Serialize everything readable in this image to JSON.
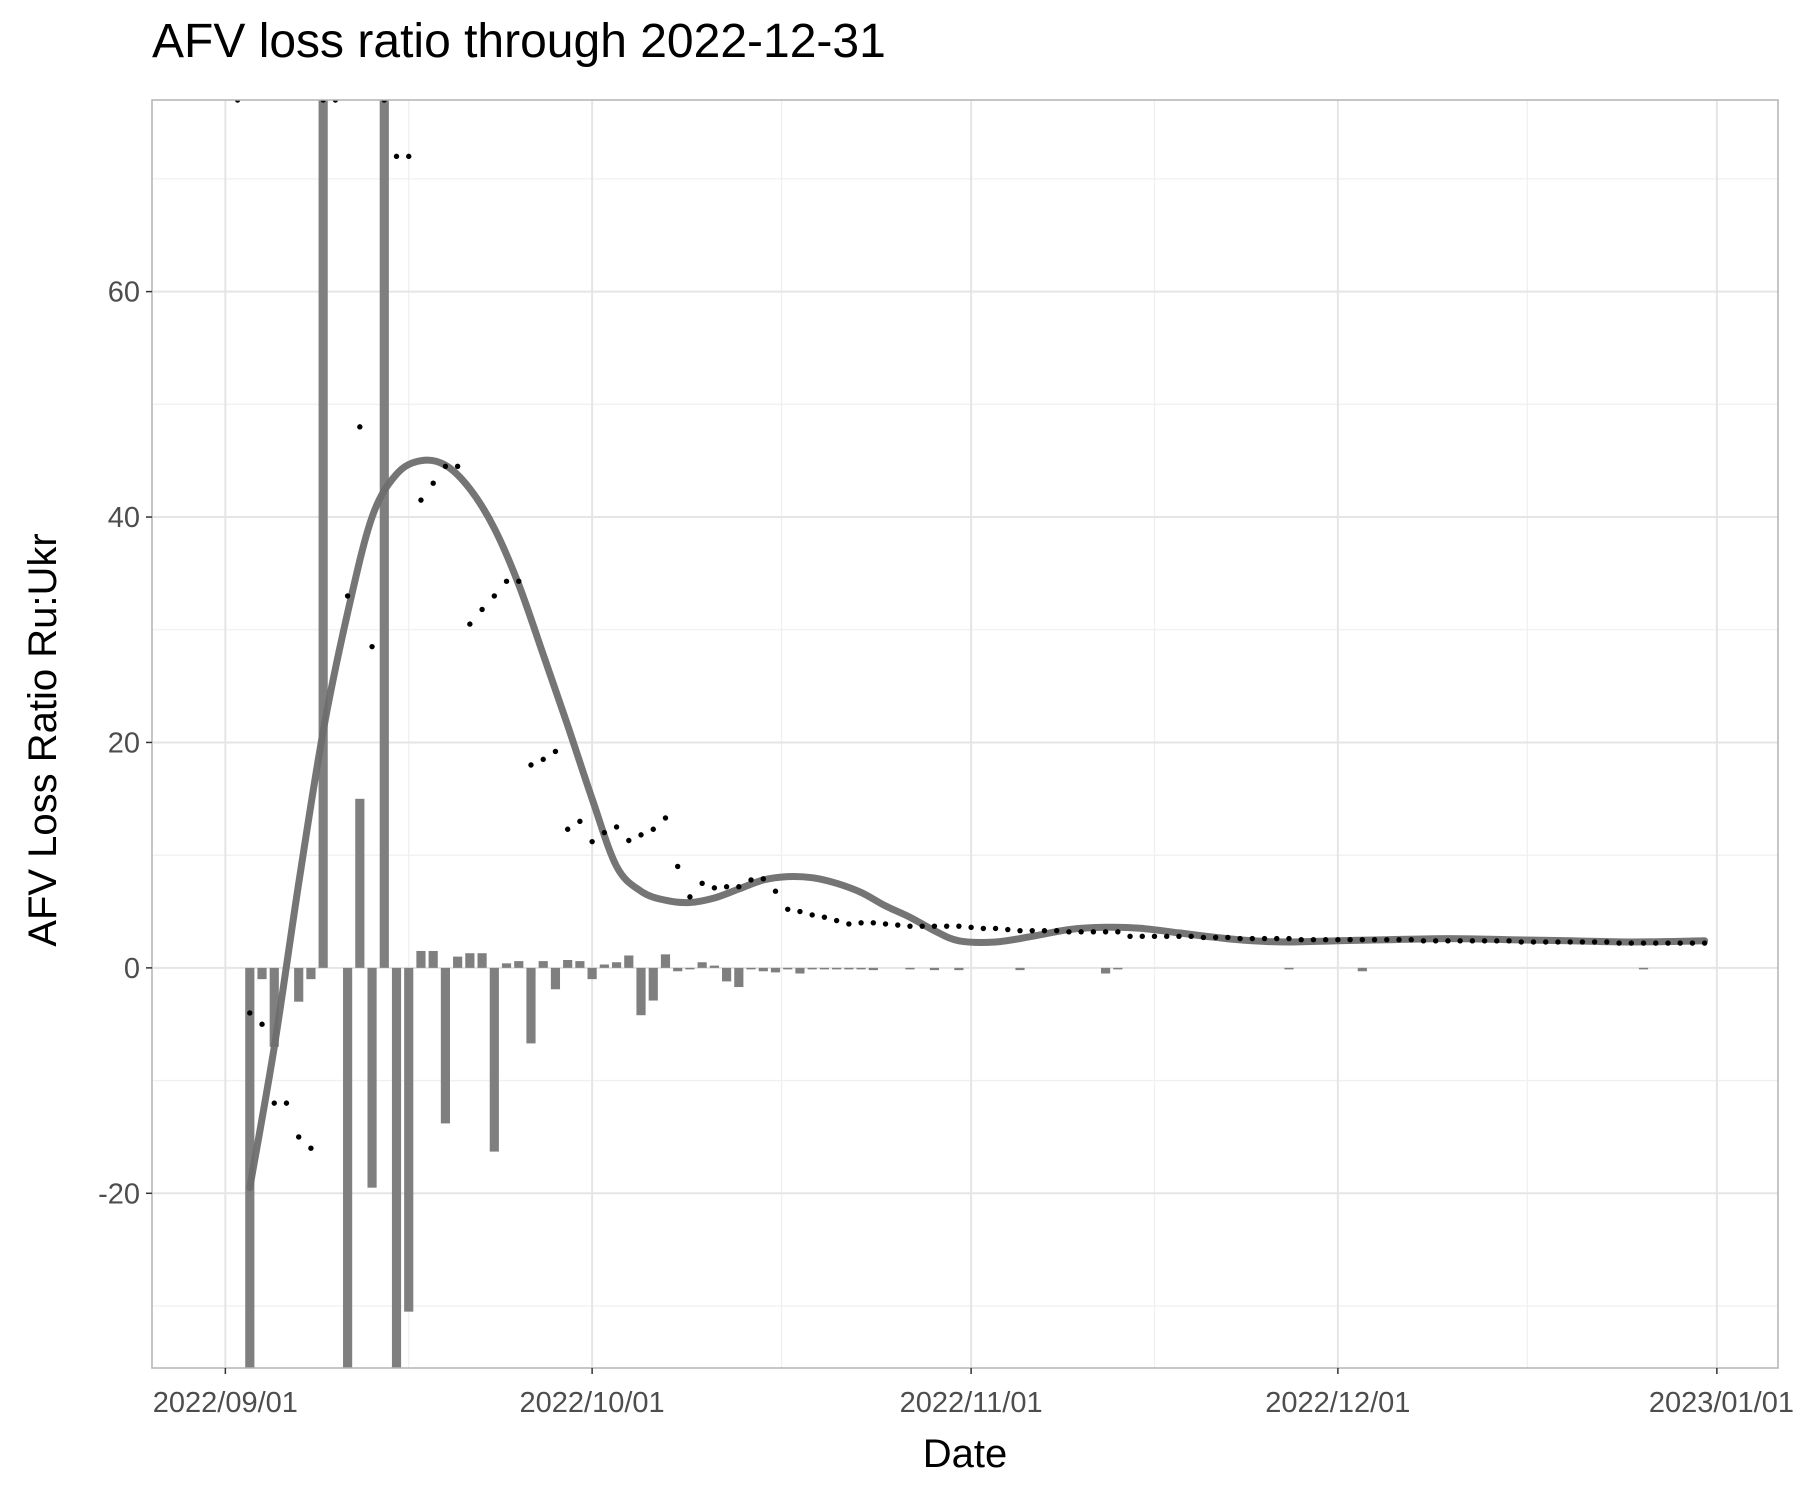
{
  "chart_data": {
    "type": "bar",
    "title": "AFV loss ratio through 2022-12-31",
    "xlabel": "Date",
    "ylabel": "AFV Loss Ratio Ru:Ukr",
    "xlim": [
      "2022-08-26",
      "2023-01-06"
    ],
    "ylim": [
      -35.5,
      77
    ],
    "x_ticks": [
      "2022-09-01",
      "2022-10-01",
      "2022-11-01",
      "2022-12-01",
      "2023-01-01"
    ],
    "x_tick_labels": [
      "2022/09/01",
      "2022/10/01",
      "2022/11/01",
      "2022/12/01",
      "2023/01/01"
    ],
    "y_ticks": [
      -20,
      0,
      20,
      40,
      60
    ],
    "y_tick_labels": [
      "-20",
      "0",
      "20",
      "40",
      "60"
    ],
    "grid": true,
    "legend": "none",
    "colors": {
      "bar": "#7f7f7f",
      "smooth_line": "#6e6e6e",
      "points": "#000000",
      "grid": "#e5e5e5",
      "panel_border": "#b3b3b3"
    },
    "series": [
      {
        "type": "bar",
        "x": [
          "2022-09-03",
          "2022-09-04",
          "2022-09-05",
          "2022-09-07",
          "2022-09-08",
          "2022-09-09",
          "2022-09-11",
          "2022-09-12",
          "2022-09-13",
          "2022-09-14",
          "2022-09-15",
          "2022-09-16",
          "2022-09-17",
          "2022-09-18",
          "2022-09-19",
          "2022-09-20",
          "2022-09-21",
          "2022-09-22",
          "2022-09-23",
          "2022-09-24",
          "2022-09-25",
          "2022-09-26",
          "2022-09-27",
          "2022-09-28",
          "2022-09-29",
          "2022-09-30",
          "2022-10-01",
          "2022-10-02",
          "2022-10-03",
          "2022-10-04",
          "2022-10-05",
          "2022-10-06",
          "2022-10-07",
          "2022-10-08",
          "2022-10-09",
          "2022-10-10",
          "2022-10-11",
          "2022-10-12",
          "2022-10-13",
          "2022-10-14",
          "2022-10-15",
          "2022-10-16",
          "2022-10-17",
          "2022-10-18",
          "2022-10-19",
          "2022-10-20",
          "2022-10-21",
          "2022-10-22",
          "2022-10-23",
          "2022-10-24",
          "2022-10-27",
          "2022-10-29",
          "2022-10-31",
          "2022-11-05",
          "2022-11-12",
          "2022-11-13",
          "2022-11-27",
          "2022-12-03",
          "2022-12-26"
        ],
        "values": [
          -36,
          -1,
          -7,
          -3,
          -1,
          77,
          -36,
          15,
          -19.5,
          77,
          -36,
          -30.5,
          1.5,
          1.5,
          -13.8,
          1,
          1.3,
          1.3,
          -16.3,
          0.4,
          0.6,
          -6.7,
          0.6,
          -1.9,
          0.7,
          0.6,
          -1,
          0.3,
          0.5,
          1.1,
          -4.2,
          -2.9,
          1.2,
          -0.3,
          -0.1,
          0.5,
          0.2,
          -1.2,
          -1.7,
          -0.1,
          -0.3,
          -0.4,
          -0.1,
          -0.5,
          -0.1,
          -0.1,
          -0.1,
          -0.1,
          -0.1,
          -0.2,
          -0.1,
          -0.2,
          -0.2,
          -0.2,
          -0.5,
          -0.1,
          -0.1,
          -0.3,
          -0.1
        ]
      },
      {
        "type": "scatter",
        "x": [
          "2022-09-02",
          "2022-09-03",
          "2022-09-04",
          "2022-09-05",
          "2022-09-06",
          "2022-09-07",
          "2022-09-08",
          "2022-09-09",
          "2022-09-10",
          "2022-09-11",
          "2022-09-12",
          "2022-09-13",
          "2022-09-14",
          "2022-09-15",
          "2022-09-16",
          "2022-09-17",
          "2022-09-18",
          "2022-09-19",
          "2022-09-20",
          "2022-09-21",
          "2022-09-22",
          "2022-09-23",
          "2022-09-24",
          "2022-09-25",
          "2022-09-26",
          "2022-09-27",
          "2022-09-28",
          "2022-09-29",
          "2022-09-30",
          "2022-10-01",
          "2022-10-02",
          "2022-10-03",
          "2022-10-04",
          "2022-10-05",
          "2022-10-06",
          "2022-10-07",
          "2022-10-08",
          "2022-10-09",
          "2022-10-10",
          "2022-10-11",
          "2022-10-12",
          "2022-10-13",
          "2022-10-14",
          "2022-10-15",
          "2022-10-16",
          "2022-10-17",
          "2022-10-18",
          "2022-10-19",
          "2022-10-20",
          "2022-10-21",
          "2022-10-22",
          "2022-10-23",
          "2022-10-24",
          "2022-10-25",
          "2022-10-26",
          "2022-10-27",
          "2022-10-28",
          "2022-10-29",
          "2022-10-30",
          "2022-10-31",
          "2022-11-01",
          "2022-11-02",
          "2022-11-03",
          "2022-11-04",
          "2022-11-05",
          "2022-11-06",
          "2022-11-07",
          "2022-11-08",
          "2022-11-09",
          "2022-11-10",
          "2022-11-11",
          "2022-11-12",
          "2022-11-13",
          "2022-11-14",
          "2022-11-15",
          "2022-11-16",
          "2022-11-17",
          "2022-11-18",
          "2022-11-19",
          "2022-11-20",
          "2022-11-21",
          "2022-11-22",
          "2022-11-23",
          "2022-11-24",
          "2022-11-25",
          "2022-11-26",
          "2022-11-27",
          "2022-11-28",
          "2022-11-29",
          "2022-11-30",
          "2022-12-01",
          "2022-12-02",
          "2022-12-03",
          "2022-12-04",
          "2022-12-05",
          "2022-12-06",
          "2022-12-07",
          "2022-12-08",
          "2022-12-09",
          "2022-12-10",
          "2022-12-11",
          "2022-12-12",
          "2022-12-13",
          "2022-12-14",
          "2022-12-15",
          "2022-12-16",
          "2022-12-17",
          "2022-12-18",
          "2022-12-19",
          "2022-12-20",
          "2022-12-21",
          "2022-12-22",
          "2022-12-23",
          "2022-12-24",
          "2022-12-25",
          "2022-12-26",
          "2022-12-27",
          "2022-12-28",
          "2022-12-29",
          "2022-12-30",
          "2022-12-31"
        ],
        "values": [
          77,
          -4,
          -5,
          -12,
          -12,
          -15,
          -16,
          77,
          77,
          33,
          48,
          28.5,
          77,
          72,
          72,
          41.5,
          43,
          44.5,
          44.5,
          30.5,
          31.8,
          33,
          34.3,
          34.3,
          18,
          18.5,
          19.2,
          12.3,
          13,
          11.2,
          12,
          12.5,
          11.3,
          11.8,
          12.3,
          13.3,
          9,
          6.3,
          7.5,
          7.1,
          7.2,
          7.2,
          7.8,
          7.9,
          6.8,
          5.2,
          5,
          4.7,
          4.5,
          4.2,
          3.9,
          4,
          4,
          3.9,
          3.8,
          3.7,
          3.7,
          3.7,
          3.7,
          3.7,
          3.6,
          3.5,
          3.5,
          3.4,
          3.3,
          3.3,
          3.3,
          3.3,
          3.2,
          3.2,
          3.2,
          3.2,
          3.2,
          2.8,
          2.8,
          2.8,
          2.8,
          2.8,
          2.8,
          2.7,
          2.7,
          2.7,
          2.6,
          2.6,
          2.6,
          2.6,
          2.6,
          2.5,
          2.5,
          2.5,
          2.5,
          2.5,
          2.5,
          2.5,
          2.5,
          2.5,
          2.5,
          2.4,
          2.4,
          2.4,
          2.4,
          2.4,
          2.4,
          2.4,
          2.4,
          2.3,
          2.3,
          2.3,
          2.3,
          2.3,
          2.3,
          2.3,
          2.3,
          2.2,
          2.2,
          2.2,
          2.2,
          2.2,
          2.2,
          2.2,
          2.2
        ]
      },
      {
        "type": "line",
        "x": [
          "2022-09-03",
          "2022-09-05",
          "2022-09-07",
          "2022-09-09",
          "2022-09-11",
          "2022-09-13",
          "2022-09-15",
          "2022-09-17",
          "2022-09-19",
          "2022-09-21",
          "2022-09-23",
          "2022-09-25",
          "2022-09-27",
          "2022-09-29",
          "2022-10-01",
          "2022-10-03",
          "2022-10-05",
          "2022-10-07",
          "2022-10-09",
          "2022-10-11",
          "2022-10-13",
          "2022-10-15",
          "2022-10-17",
          "2022-10-19",
          "2022-10-21",
          "2022-10-23",
          "2022-10-25",
          "2022-10-27",
          "2022-10-29",
          "2022-10-31",
          "2022-11-03",
          "2022-11-06",
          "2022-11-09",
          "2022-11-12",
          "2022-11-15",
          "2022-11-18",
          "2022-11-21",
          "2022-11-24",
          "2022-11-27",
          "2022-12-01",
          "2022-12-05",
          "2022-12-10",
          "2022-12-15",
          "2022-12-20",
          "2022-12-25",
          "2022-12-31"
        ],
        "values": [
          -19.5,
          -7,
          7.5,
          21,
          31.5,
          40,
          43.8,
          45,
          44.6,
          42.5,
          39,
          34,
          27.8,
          21.5,
          15,
          9,
          6.8,
          6,
          5.8,
          6.2,
          7,
          7.8,
          8.1,
          8,
          7.5,
          6.7,
          5.5,
          4.5,
          3.3,
          2.4,
          2.3,
          2.8,
          3.4,
          3.6,
          3.5,
          3.1,
          2.7,
          2.4,
          2.3,
          2.4,
          2.5,
          2.6,
          2.5,
          2.4,
          2.3,
          2.4
        ]
      }
    ]
  }
}
